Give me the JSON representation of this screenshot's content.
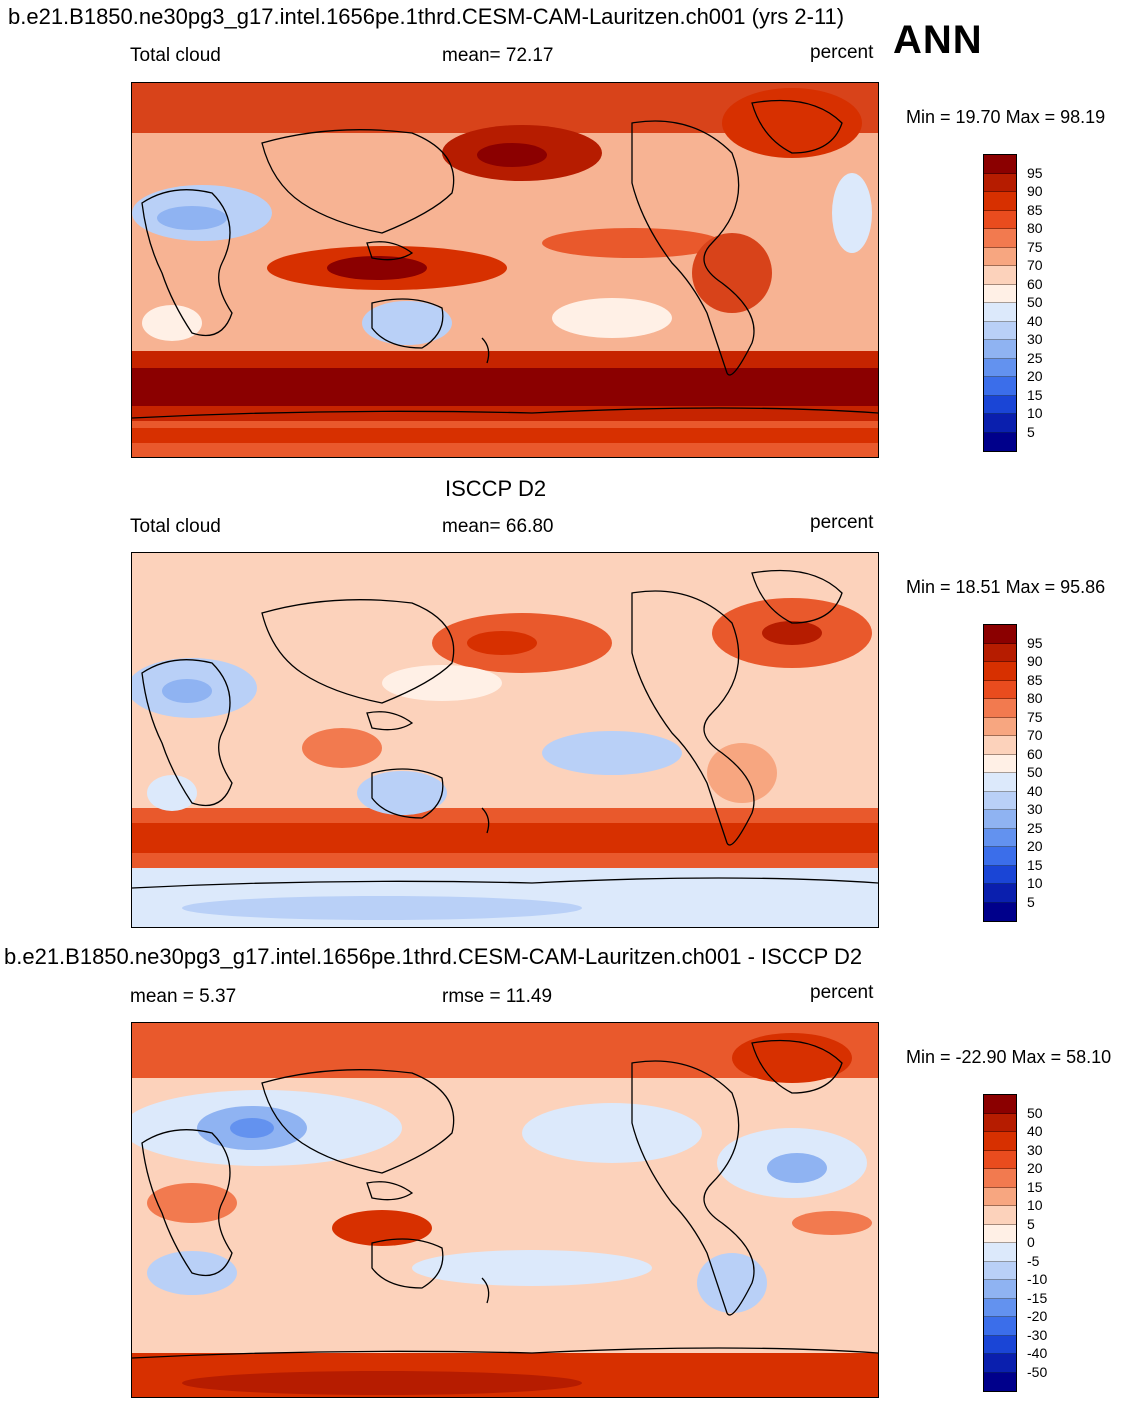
{
  "header": {
    "main_title": "b.e21.B1850.ne30pg3_g17.intel.1656pe.1thrd.CESM-CAM-Lauritzen.ch001 (yrs 2-11)",
    "season": "ANN"
  },
  "panels": [
    {
      "id": "model",
      "left_label": "Total cloud",
      "center_label": "mean=  72.17",
      "right_label": "percent",
      "stats": "Min =  19.70 Max =  98.19",
      "colorbar_ticks": [
        "95",
        "90",
        "85",
        "80",
        "75",
        "70",
        "60",
        "50",
        "40",
        "30",
        "25",
        "20",
        "15",
        "10",
        "5"
      ]
    },
    {
      "id": "obs",
      "title": "ISCCP D2",
      "left_label": "Total cloud",
      "center_label": "mean=  66.80",
      "right_label": "percent",
      "stats": "Min =  18.51 Max =  95.86",
      "colorbar_ticks": [
        "95",
        "90",
        "85",
        "80",
        "75",
        "70",
        "60",
        "50",
        "40",
        "30",
        "25",
        "20",
        "15",
        "10",
        "5"
      ]
    },
    {
      "id": "diff",
      "title": "b.e21.B1850.ne30pg3_g17.intel.1656pe.1thrd.CESM-CAM-Lauritzen.ch001 - ISCCP D2",
      "left_label": "mean =   5.37",
      "center_label": "rmse =   11.49",
      "right_label": "percent",
      "stats": "Min = -22.90 Max =  58.10",
      "colorbar_ticks": [
        "50",
        "40",
        "30",
        "20",
        "15",
        "10",
        "5",
        "0",
        "-5",
        "-10",
        "-15",
        "-20",
        "-30",
        "-40",
        "-50"
      ]
    }
  ],
  "colorbar_colors": [
    "#8b0000",
    "#b61c00",
    "#d73000",
    "#e94c1e",
    "#f27a4f",
    "#f7a680",
    "#fcd2bb",
    "#fff0e6",
    "#dce9fb",
    "#b9d0f7",
    "#8fb3f2",
    "#6392ef",
    "#3b6eea",
    "#1a45d6",
    "#0a1fae",
    "#00008b"
  ]
}
